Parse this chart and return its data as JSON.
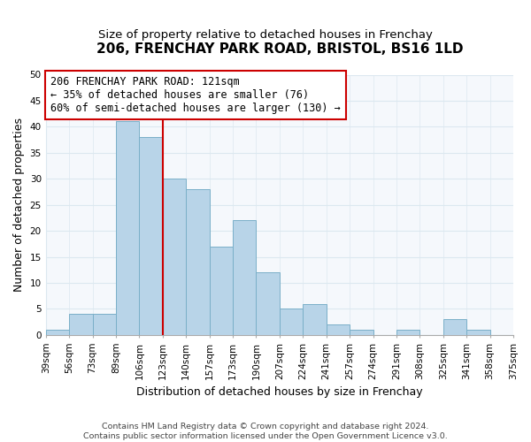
{
  "title": "206, FRENCHAY PARK ROAD, BRISTOL, BS16 1LD",
  "subtitle": "Size of property relative to detached houses in Frenchay",
  "xlabel": "Distribution of detached houses by size in Frenchay",
  "ylabel": "Number of detached properties",
  "categories": [
    "39sqm",
    "56sqm",
    "73sqm",
    "89sqm",
    "106sqm",
    "123sqm",
    "140sqm",
    "157sqm",
    "173sqm",
    "190sqm",
    "207sqm",
    "224sqm",
    "241sqm",
    "257sqm",
    "274sqm",
    "291sqm",
    "308sqm",
    "325sqm",
    "341sqm",
    "358sqm",
    "375sqm"
  ],
  "values": [
    1,
    4,
    4,
    41,
    38,
    30,
    28,
    17,
    22,
    12,
    5,
    6,
    2,
    1,
    0,
    1,
    0,
    3,
    1,
    0
  ],
  "bar_color": "#b8d4e8",
  "bar_edge_color": "#7aafc8",
  "vline_color": "#cc0000",
  "vline_pos": 5,
  "ylim": [
    0,
    50
  ],
  "yticks": [
    0,
    5,
    10,
    15,
    20,
    25,
    30,
    35,
    40,
    45,
    50
  ],
  "annotation_text": "206 FRENCHAY PARK ROAD: 121sqm\n← 35% of detached houses are smaller (76)\n60% of semi-detached houses are larger (130) →",
  "annotation_box_edge": "#cc0000",
  "footer": "Contains HM Land Registry data © Crown copyright and database right 2024.\nContains public sector information licensed under the Open Government Licence v3.0.",
  "grid_color": "#dce8f0",
  "background_color": "#f5f8fc",
  "title_fontsize": 11,
  "subtitle_fontsize": 9.5,
  "ylabel_fontsize": 9,
  "xlabel_fontsize": 9,
  "tick_fontsize": 7.5,
  "annotation_fontsize": 8.5,
  "footer_fontsize": 6.8
}
